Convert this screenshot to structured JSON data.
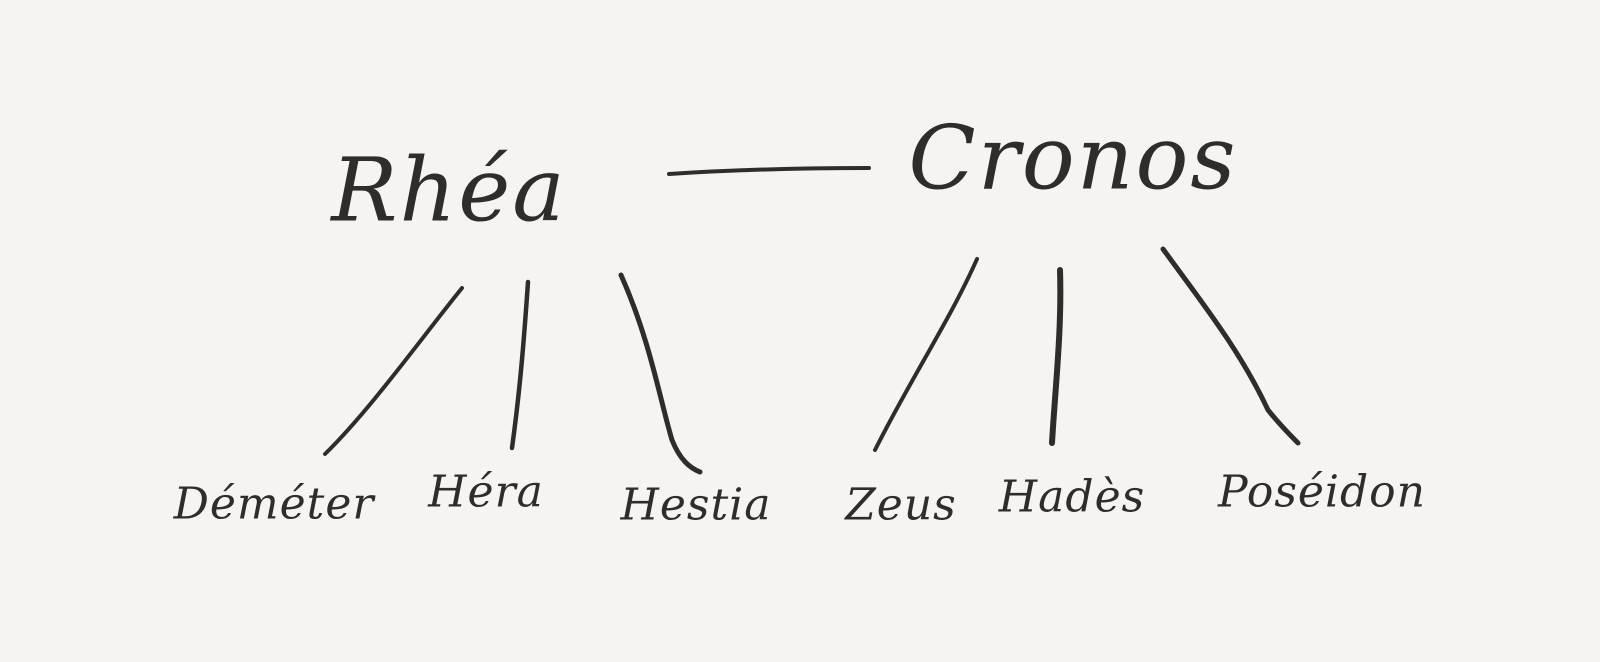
{
  "parents": [
    {
      "id": "rhea",
      "name": "Rhéa"
    },
    {
      "id": "cronos",
      "name": "Cronos"
    }
  ],
  "children": [
    {
      "id": "demeter",
      "name": "Déméter",
      "parent": "rhea"
    },
    {
      "id": "hera",
      "name": "Héra",
      "parent": "rhea"
    },
    {
      "id": "hestia",
      "name": "Hestia",
      "parent": "rhea"
    },
    {
      "id": "zeus",
      "name": "Zeus",
      "parent": "cronos"
    },
    {
      "id": "hades",
      "name": "Hadès",
      "parent": "cronos"
    },
    {
      "id": "poseidon",
      "name": "Poséidon",
      "parent": "cronos"
    }
  ],
  "colors": {
    "background": "#f5f4f0",
    "ink": "#2e2d2b"
  }
}
